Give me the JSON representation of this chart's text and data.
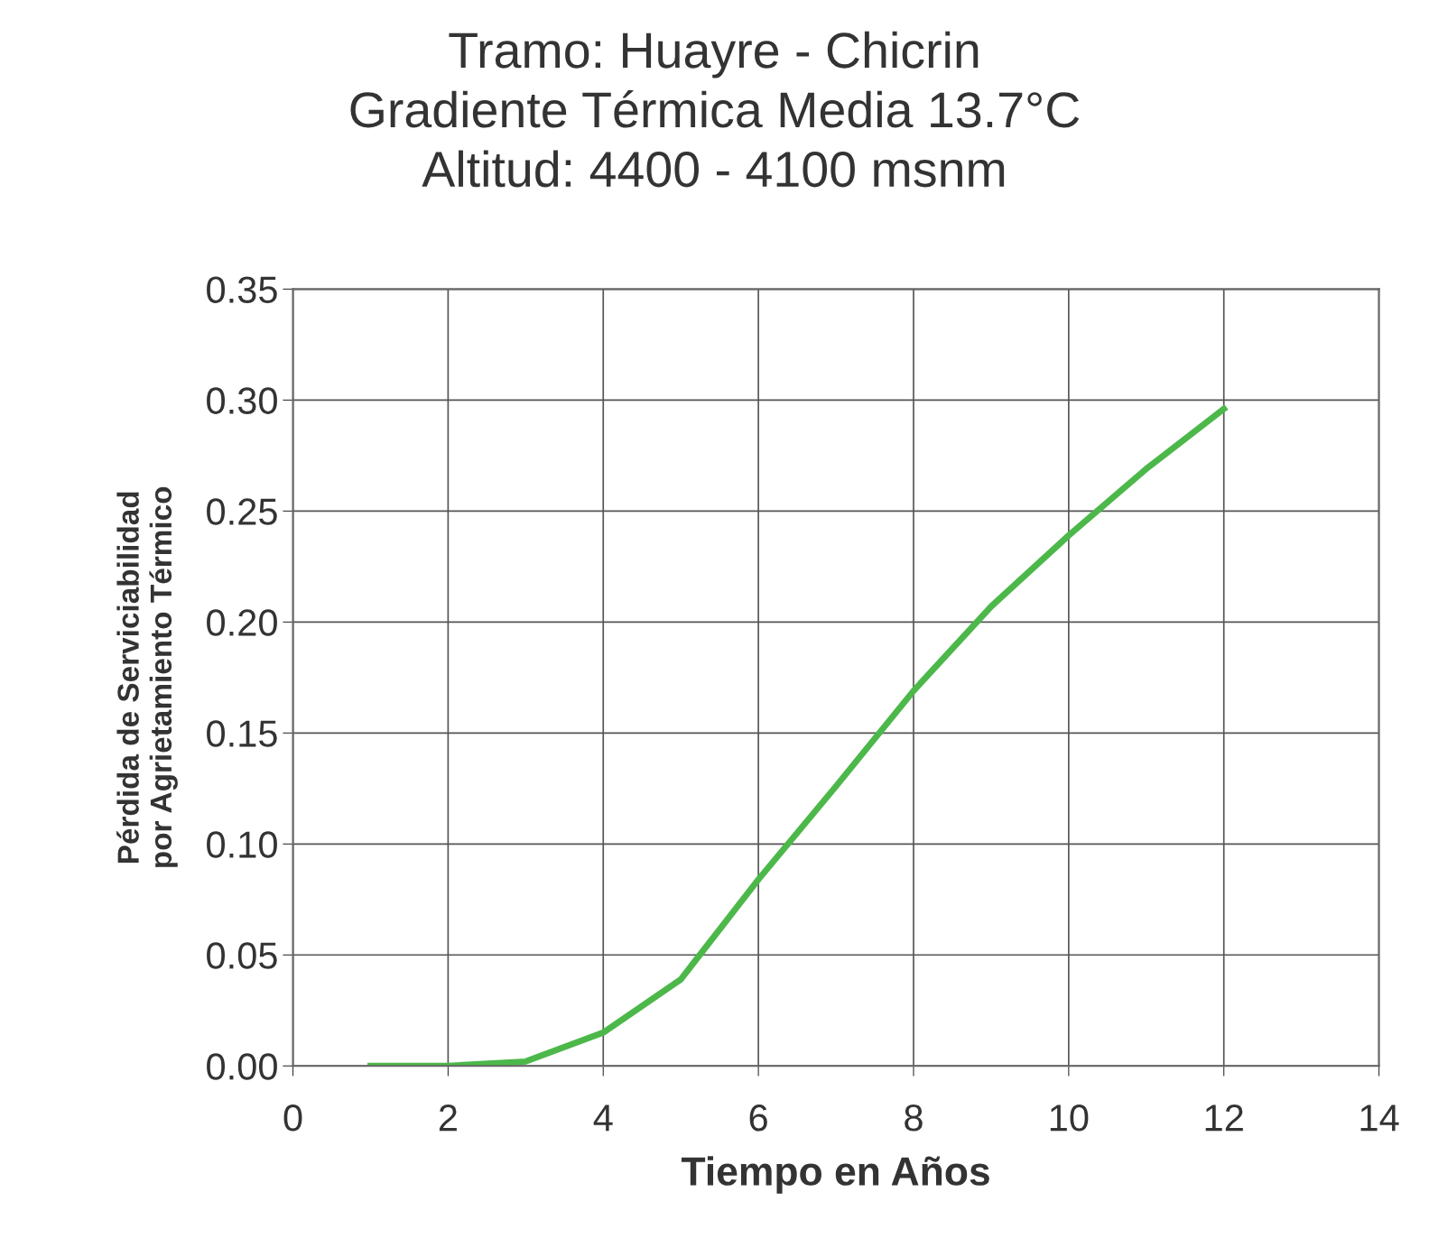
{
  "chart_data": {
    "type": "line",
    "title": "Tramo: Huayre - Chicrin\nGradiente Térmica Media 13.7°C\nAltitud: 4400 - 4100 msnm",
    "xlabel": "Tiempo en Años",
    "ylabel": "Pérdida de Serviciabilidad\npor Agrietamiento Térmico",
    "x": [
      1,
      2,
      3,
      4,
      5,
      6,
      7,
      8,
      9,
      10,
      11,
      12
    ],
    "series": [
      {
        "color": "#4cb84a",
        "values": [
          0.0,
          0.0,
          0.002,
          0.015,
          0.039,
          0.084,
          0.126,
          0.169,
          0.207,
          0.239,
          0.269,
          0.296
        ]
      }
    ],
    "xlim": [
      0,
      14
    ],
    "xticks": [
      0,
      2,
      4,
      6,
      8,
      10,
      12,
      14
    ],
    "ylim": [
      0,
      0.35
    ],
    "yticks": [
      {
        "value": 0,
        "label": "0.00"
      },
      {
        "value": 0.05,
        "label": "0.05"
      },
      {
        "value": 0.1,
        "label": "0.10"
      },
      {
        "value": 0.15,
        "label": "0.15"
      },
      {
        "value": 0.2,
        "label": "0.20"
      },
      {
        "value": 0.25,
        "label": "0.25"
      },
      {
        "value": 0.3,
        "label": "0.30"
      },
      {
        "value": 0.35,
        "label": "0.35"
      }
    ],
    "grid": true,
    "marker": "none",
    "line_style": "solid",
    "legend": false
  }
}
